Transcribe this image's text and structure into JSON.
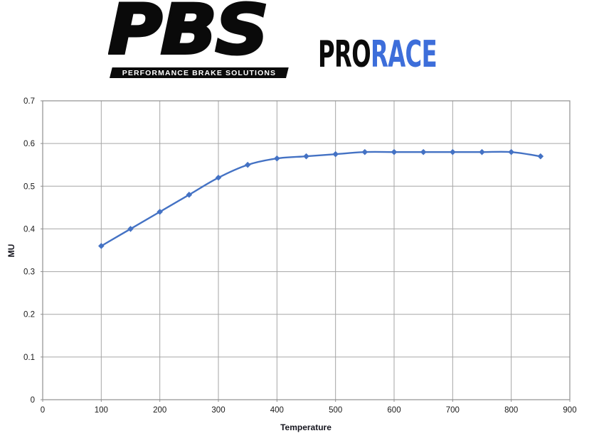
{
  "header": {
    "logo": {
      "text": "PBS",
      "subtitle": "PERFORMANCE BRAKE SOLUTIONS",
      "color": "#0a0a0a"
    },
    "product": {
      "part1": "PRO",
      "part2": "RACE",
      "part1_color": "#0b0b0b",
      "part2_color": "#3d6eda"
    }
  },
  "chart_data": {
    "type": "line",
    "title": "",
    "xlabel": "Temperature",
    "ylabel": "MU",
    "x": [
      100,
      150,
      200,
      250,
      300,
      350,
      400,
      450,
      500,
      550,
      600,
      650,
      700,
      750,
      800,
      850
    ],
    "series": [
      {
        "name": "MU",
        "color": "#4472c4",
        "marker": "diamond",
        "smooth": true,
        "values": [
          0.36,
          0.4,
          0.44,
          0.48,
          0.52,
          0.55,
          0.565,
          0.57,
          0.575,
          0.58,
          0.58,
          0.58,
          0.58,
          0.58,
          0.58,
          0.57
        ]
      }
    ],
    "xlim": [
      0,
      900
    ],
    "ylim": [
      0,
      0.7
    ],
    "x_ticks": [
      0,
      100,
      200,
      300,
      400,
      500,
      600,
      700,
      800,
      900
    ],
    "y_ticks": [
      0,
      0.1,
      0.2,
      0.3,
      0.4,
      0.5,
      0.6,
      0.7
    ],
    "grid": true,
    "legend": "none",
    "gridline_color": "#a6a6a6",
    "plot_border_color": "#8f8f8f",
    "tick_label_color": "#1a1a1a"
  }
}
